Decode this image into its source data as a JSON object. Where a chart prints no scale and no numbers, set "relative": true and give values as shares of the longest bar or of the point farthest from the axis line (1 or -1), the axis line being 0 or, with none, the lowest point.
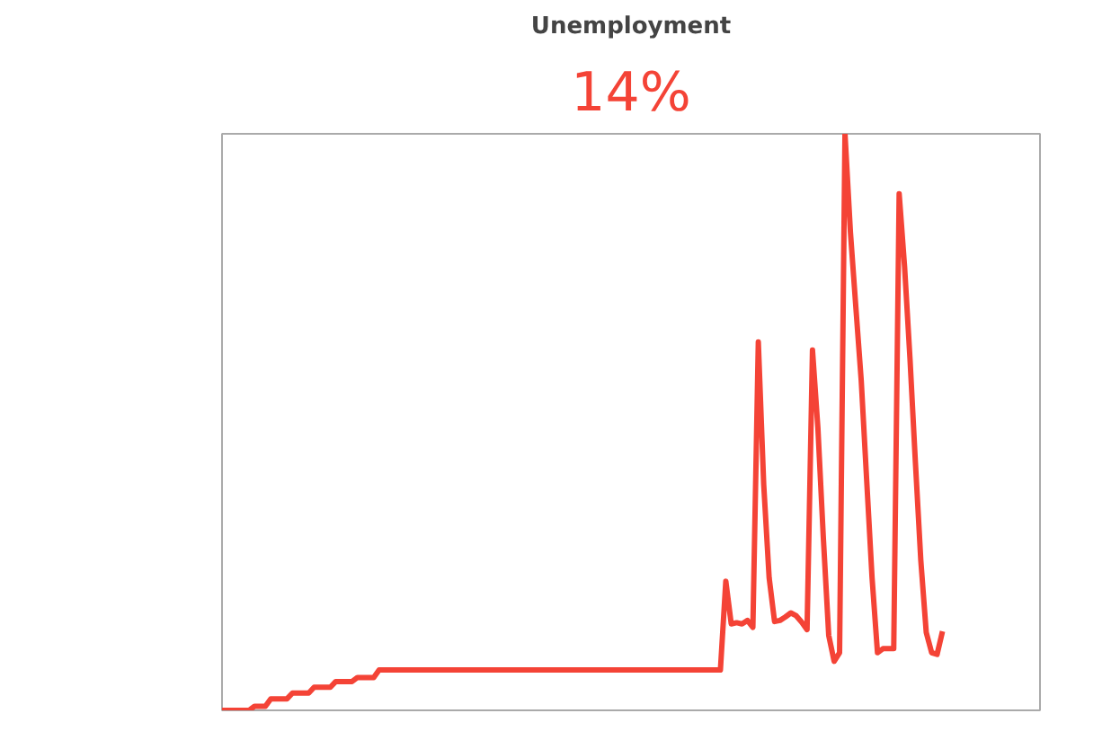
{
  "chart_data": {
    "type": "line",
    "title": "Unemployment",
    "subtitle": "14%",
    "relative": true,
    "tick_labels": false,
    "grid": false,
    "marker": "none",
    "line_style": "solid",
    "categories": [
      null,
      null,
      null,
      null,
      null,
      null,
      null,
      null,
      null,
      null,
      null,
      null,
      null,
      null,
      null,
      null,
      null,
      null,
      null,
      null,
      null,
      null,
      null,
      null,
      null,
      null,
      null,
      null,
      null,
      null,
      null,
      null,
      null,
      null,
      null,
      null,
      null,
      null,
      null,
      null,
      null,
      null,
      null,
      null,
      null,
      null,
      null,
      null,
      null,
      null,
      null,
      null,
      null,
      null,
      null,
      null,
      null,
      null,
      null,
      null,
      null,
      null,
      null,
      null,
      null,
      null,
      null,
      null,
      null,
      null,
      null,
      null,
      null,
      null,
      null,
      null,
      null,
      null,
      null,
      null,
      null,
      null,
      null,
      null,
      null,
      null,
      null,
      null,
      null,
      null,
      null,
      null,
      null,
      null,
      null,
      null,
      null,
      null,
      null,
      null,
      null,
      null,
      null,
      null,
      null,
      null,
      null,
      null,
      null,
      null,
      null,
      null,
      null,
      null,
      null,
      null,
      null,
      null,
      null,
      null,
      null,
      null,
      null,
      null,
      null,
      null,
      null,
      null,
      null,
      null,
      null,
      null,
      null,
      null,
      null,
      null,
      null,
      null,
      null,
      null,
      null,
      null,
      null,
      null,
      null,
      null,
      null,
      null,
      null,
      null,
      null,
      null
    ],
    "series": [
      {
        "color": "#f44336",
        "values": [
          0,
          0,
          0,
          0,
          0,
          0,
          0.007,
          0.007,
          0.007,
          0.02,
          0.02,
          0.02,
          0.02,
          0.03,
          0.03,
          0.03,
          0.03,
          0.04,
          0.04,
          0.04,
          0.04,
          0.05,
          0.05,
          0.05,
          0.05,
          0.057,
          0.057,
          0.057,
          0.057,
          0.07,
          0.07,
          0.07,
          0.07,
          0.07,
          0.07,
          0.07,
          0.07,
          0.07,
          0.07,
          0.07,
          0.07,
          0.07,
          0.07,
          0.07,
          0.07,
          0.07,
          0.07,
          0.07,
          0.07,
          0.07,
          0.07,
          0.07,
          0.07,
          0.07,
          0.07,
          0.07,
          0.07,
          0.07,
          0.07,
          0.07,
          0.07,
          0.07,
          0.07,
          0.07,
          0.07,
          0.07,
          0.07,
          0.07,
          0.07,
          0.07,
          0.07,
          0.07,
          0.07,
          0.07,
          0.07,
          0.07,
          0.07,
          0.07,
          0.07,
          0.07,
          0.07,
          0.07,
          0.07,
          0.07,
          0.07,
          0.07,
          0.07,
          0.07,
          0.07,
          0.07,
          0.07,
          0.07,
          0.07,
          0.224,
          0.15,
          0.152,
          0.15,
          0.156,
          0.144,
          0.639,
          0.391,
          0.23,
          0.154,
          0.156,
          0.162,
          0.169,
          0.164,
          0.153,
          0.14,
          0.625,
          0.49,
          0.3,
          0.13,
          0.085,
          0.1,
          1.0,
          0.83,
          0.7,
          0.572,
          0.4,
          0.23,
          0.1,
          0.107,
          0.107,
          0.107,
          0.896,
          0.77,
          0.61,
          0.43,
          0.26,
          0.135,
          0.1,
          0.097,
          0.137,
          null,
          null,
          null,
          null,
          null,
          null,
          null,
          null,
          null,
          null,
          null,
          null,
          null,
          null,
          null,
          null,
          null,
          null
        ]
      }
    ]
  }
}
